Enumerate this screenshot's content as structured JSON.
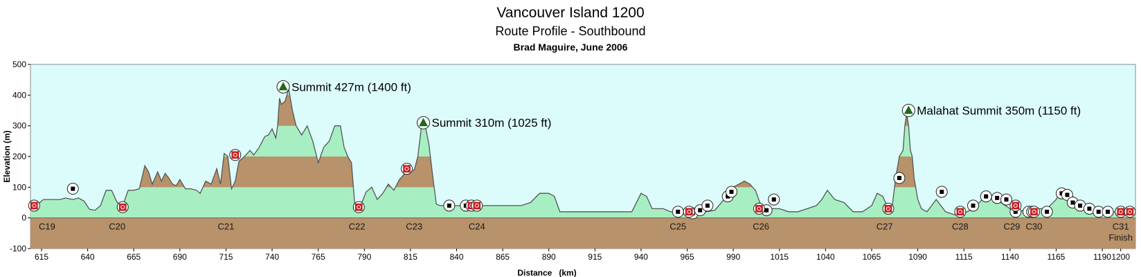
{
  "chart_data": {
    "type": "area",
    "title": "Vancouver Island 1200",
    "subtitle": "Route Profile - Southbound",
    "credit": "Brad Maguire, June 2006",
    "xlabel": "Distance   (km)",
    "ylabel": "Elevation (m)",
    "xlim": [
      609,
      1208
    ],
    "ylim": [
      -100,
      500
    ],
    "xticks": [
      615,
      640,
      665,
      690,
      715,
      740,
      765,
      790,
      815,
      840,
      865,
      890,
      915,
      940,
      965,
      990,
      1015,
      1040,
      1065,
      1090,
      1115,
      1140,
      1165,
      1190,
      1200
    ],
    "yticks": [
      -100,
      0,
      100,
      200,
      300,
      400,
      500
    ],
    "bands": [
      {
        "from": -100,
        "to": 0,
        "color": "#b8926a"
      },
      {
        "from": 100,
        "to": 200,
        "color": "#b8926a"
      },
      {
        "from": 300,
        "to": 400,
        "color": "#b8926a"
      }
    ],
    "colors": {
      "plot_bg": "#dcfbfb",
      "fill": "#a7efc2",
      "band": "#b8926a",
      "line": "#555555",
      "summit": "#1d6b1d",
      "marker": "#d42020"
    },
    "series": [
      {
        "x": [
          609,
          612,
          616,
          619,
          622,
          625,
          628,
          632,
          635,
          638,
          641,
          644,
          647,
          650,
          653,
          656,
          659,
          662,
          665,
          668,
          671,
          673,
          675,
          678,
          680,
          682,
          684,
          686,
          688,
          690,
          693,
          696,
          699,
          701,
          704,
          707,
          710,
          712,
          714,
          716,
          718,
          720,
          722,
          725,
          728,
          730,
          733,
          736,
          738,
          740,
          742,
          743,
          744,
          745,
          747,
          749,
          751,
          753,
          756,
          759,
          762,
          765,
          768,
          771,
          774,
          777,
          779,
          781,
          783,
          785,
          788,
          791,
          794,
          797,
          800,
          803,
          806,
          809,
          812,
          815,
          817,
          819,
          821,
          822,
          823,
          825,
          827,
          829,
          831,
          833,
          836,
          840,
          845,
          850,
          855,
          860,
          865,
          870,
          875,
          880,
          885,
          890,
          893,
          896,
          900,
          905,
          910,
          915,
          920,
          925,
          930,
          935,
          940,
          943,
          946,
          949,
          952,
          956,
          960,
          965,
          970,
          975,
          980,
          985,
          990,
          993,
          996,
          999,
          1002,
          1005,
          1010,
          1015,
          1020,
          1025,
          1030,
          1035,
          1038,
          1041,
          1045,
          1050,
          1055,
          1060,
          1065,
          1068,
          1071,
          1074,
          1076,
          1078,
          1080,
          1082,
          1083,
          1084,
          1085,
          1086,
          1087,
          1088,
          1090,
          1092,
          1095,
          1100,
          1105,
          1110,
          1115,
          1120,
          1125,
          1130,
          1135,
          1140,
          1145,
          1150,
          1155,
          1160,
          1165,
          1168,
          1171,
          1174,
          1177,
          1180,
          1185,
          1190,
          1195,
          1200,
          1205,
          1208
        ],
        "y": [
          30,
          40,
          60,
          60,
          60,
          60,
          65,
          60,
          65,
          55,
          28,
          25,
          40,
          90,
          90,
          50,
          40,
          90,
          90,
          95,
          170,
          150,
          110,
          150,
          120,
          145,
          130,
          110,
          105,
          125,
          95,
          95,
          90,
          80,
          120,
          110,
          160,
          110,
          210,
          200,
          95,
          120,
          185,
          200,
          220,
          205,
          230,
          265,
          270,
          290,
          260,
          300,
          390,
          370,
          380,
          420,
          350,
          300,
          270,
          300,
          250,
          180,
          230,
          250,
          300,
          300,
          230,
          200,
          180,
          30,
          40,
          85,
          100,
          60,
          80,
          110,
          90,
          125,
          145,
          155,
          155,
          200,
          300,
          310,
          300,
          240,
          140,
          45,
          40,
          40,
          40,
          40,
          40,
          40,
          40,
          40,
          40,
          40,
          40,
          50,
          80,
          80,
          70,
          20,
          20,
          20,
          20,
          20,
          20,
          20,
          20,
          20,
          80,
          70,
          30,
          30,
          30,
          20,
          20,
          15,
          15,
          20,
          25,
          60,
          100,
          110,
          120,
          110,
          90,
          40,
          30,
          30,
          20,
          20,
          30,
          40,
          60,
          90,
          60,
          50,
          20,
          20,
          40,
          80,
          70,
          30,
          30,
          130,
          200,
          220,
          300,
          340,
          300,
          220,
          200,
          130,
          60,
          30,
          20,
          60,
          20,
          10,
          15,
          30,
          60,
          70,
          50,
          30,
          20,
          30,
          30,
          30,
          60,
          90,
          85,
          70,
          40,
          25,
          20,
          10,
          20,
          20,
          25,
          20
        ]
      }
    ],
    "checkpoints": [
      {
        "label": "C19",
        "x": 618
      },
      {
        "label": "C20",
        "x": 656
      },
      {
        "label": "C21",
        "x": 715
      },
      {
        "label": "C22",
        "x": 786
      },
      {
        "label": "C23",
        "x": 817
      },
      {
        "label": "C24",
        "x": 851
      },
      {
        "label": "C25",
        "x": 960
      },
      {
        "label": "C26",
        "x": 1005
      },
      {
        "label": "C27",
        "x": 1072
      },
      {
        "label": "C28",
        "x": 1113
      },
      {
        "label": "C29",
        "x": 1141
      },
      {
        "label": "C30",
        "x": 1153
      },
      {
        "label": "C31",
        "x": 1200
      }
    ],
    "finish_label": "Finish",
    "summits": [
      {
        "label": "Summit 427m (1400 ft)",
        "x": 746,
        "y": 427
      },
      {
        "label": "Summit 310m (1025 ft)",
        "x": 822,
        "y": 310
      },
      {
        "label": "Malahat Summit 350m (1150 ft)",
        "x": 1085,
        "y": 350
      }
    ],
    "control_markers": [
      {
        "x": 611,
        "y": 40
      },
      {
        "x": 659,
        "y": 35
      },
      {
        "x": 720,
        "y": 205
      },
      {
        "x": 787,
        "y": 35
      },
      {
        "x": 813,
        "y": 160
      },
      {
        "x": 848,
        "y": 40
      },
      {
        "x": 851,
        "y": 40
      },
      {
        "x": 966,
        "y": 20
      },
      {
        "x": 1004,
        "y": 30
      },
      {
        "x": 1074,
        "y": 30
      },
      {
        "x": 1113,
        "y": 20
      },
      {
        "x": 1143,
        "y": 40
      },
      {
        "x": 1153,
        "y": 20
      },
      {
        "x": 1200,
        "y": 20
      },
      {
        "x": 1205,
        "y": 20
      }
    ],
    "service_markers": [
      {
        "x": 632,
        "y": 95
      },
      {
        "x": 836,
        "y": 40
      },
      {
        "x": 845,
        "y": 40
      },
      {
        "x": 960,
        "y": 20
      },
      {
        "x": 968,
        "y": 15
      },
      {
        "x": 972,
        "y": 25
      },
      {
        "x": 976,
        "y": 40
      },
      {
        "x": 987,
        "y": 70
      },
      {
        "x": 989,
        "y": 85
      },
      {
        "x": 1008,
        "y": 25
      },
      {
        "x": 1012,
        "y": 60
      },
      {
        "x": 1080,
        "y": 130
      },
      {
        "x": 1103,
        "y": 85
      },
      {
        "x": 1120,
        "y": 40
      },
      {
        "x": 1127,
        "y": 70
      },
      {
        "x": 1133,
        "y": 65
      },
      {
        "x": 1138,
        "y": 60
      },
      {
        "x": 1143,
        "y": 20
      },
      {
        "x": 1150,
        "y": 20
      },
      {
        "x": 1152,
        "y": 20
      },
      {
        "x": 1160,
        "y": 20
      },
      {
        "x": 1168,
        "y": 80
      },
      {
        "x": 1171,
        "y": 75
      },
      {
        "x": 1174,
        "y": 50
      },
      {
        "x": 1178,
        "y": 40
      },
      {
        "x": 1183,
        "y": 30
      },
      {
        "x": 1188,
        "y": 20
      },
      {
        "x": 1193,
        "y": 20
      }
    ]
  }
}
